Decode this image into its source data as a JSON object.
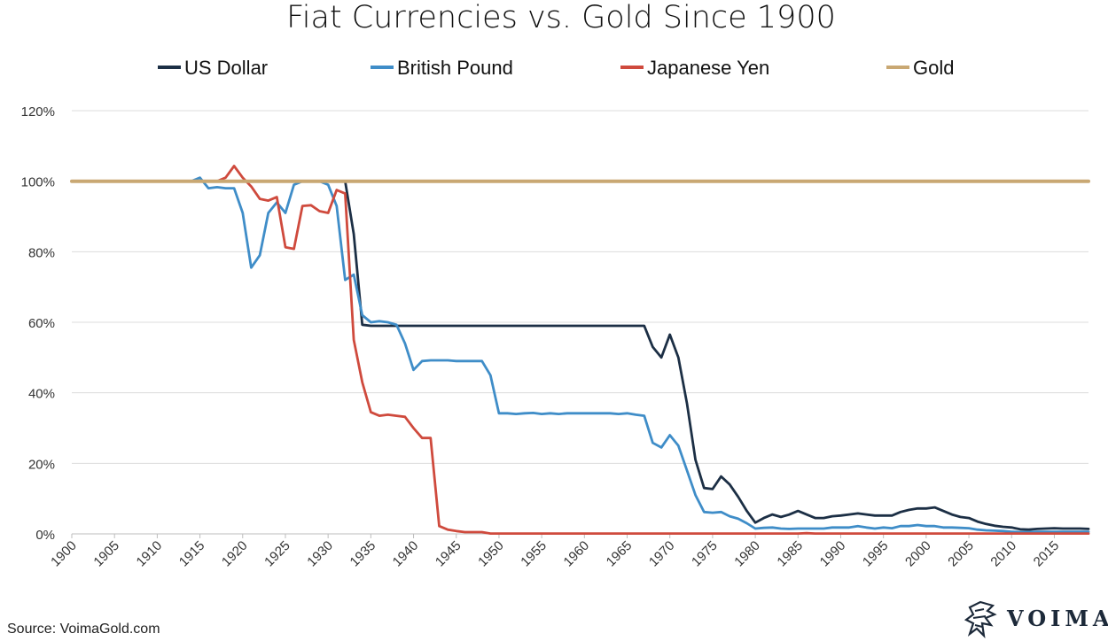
{
  "chart_data": {
    "type": "line",
    "title": "Fiat Currencies vs. Gold Since 1900",
    "xlabel": "",
    "ylabel": "",
    "x_range": [
      1900,
      2019
    ],
    "ylim": [
      0,
      120
    ],
    "y_ticks": [
      0,
      20,
      40,
      60,
      80,
      100,
      120
    ],
    "y_tick_labels": [
      "0%",
      "20%",
      "40%",
      "60%",
      "80%",
      "100%",
      "120%"
    ],
    "x_ticks": [
      1900,
      1905,
      1910,
      1915,
      1920,
      1925,
      1930,
      1935,
      1940,
      1945,
      1950,
      1955,
      1960,
      1965,
      1970,
      1975,
      1980,
      1985,
      1990,
      1995,
      2000,
      2005,
      2010,
      2015
    ],
    "x_tick_labels": [
      "1900",
      "1905",
      "1910",
      "1915",
      "1920",
      "1925",
      "1930",
      "1935",
      "1940",
      "1945",
      "1950",
      "1955",
      "1960",
      "1965",
      "1970",
      "1975",
      "1980",
      "1985",
      "1990",
      "1995",
      "2000",
      "2005",
      "2010",
      "2015"
    ],
    "grid": "horizontal",
    "legend_position": "top",
    "series": [
      {
        "name": "US Dollar",
        "color": "#1c2f45",
        "points": [
          [
            1900,
            100
          ],
          [
            1932,
            100
          ],
          [
            1933,
            85
          ],
          [
            1934,
            59.3
          ],
          [
            1935,
            59
          ],
          [
            1967,
            59
          ],
          [
            1968,
            53
          ],
          [
            1969,
            50
          ],
          [
            1970,
            56.5
          ],
          [
            1971,
            50
          ],
          [
            1972,
            37
          ],
          [
            1973,
            21
          ],
          [
            1974,
            13
          ],
          [
            1975,
            12.7
          ],
          [
            1976,
            16.3
          ],
          [
            1977,
            14
          ],
          [
            1978,
            10.5
          ],
          [
            1979,
            6.5
          ],
          [
            1980,
            3.2
          ],
          [
            1981,
            4.5
          ],
          [
            1982,
            5.5
          ],
          [
            1983,
            4.8
          ],
          [
            1984,
            5.5
          ],
          [
            1985,
            6.5
          ],
          [
            1986,
            5.5
          ],
          [
            1987,
            4.5
          ],
          [
            1988,
            4.5
          ],
          [
            1989,
            5
          ],
          [
            1990,
            5.2
          ],
          [
            1991,
            5.5
          ],
          [
            1992,
            5.8
          ],
          [
            1993,
            5.5
          ],
          [
            1994,
            5.2
          ],
          [
            1995,
            5.2
          ],
          [
            1996,
            5.2
          ],
          [
            1997,
            6.2
          ],
          [
            1998,
            6.8
          ],
          [
            1999,
            7.2
          ],
          [
            2000,
            7.2
          ],
          [
            2001,
            7.5
          ],
          [
            2002,
            6.5
          ],
          [
            2003,
            5.5
          ],
          [
            2004,
            4.8
          ],
          [
            2005,
            4.5
          ],
          [
            2006,
            3.5
          ],
          [
            2007,
            2.8
          ],
          [
            2008,
            2.3
          ],
          [
            2009,
            2
          ],
          [
            2010,
            1.8
          ],
          [
            2011,
            1.3
          ],
          [
            2012,
            1.2
          ],
          [
            2013,
            1.4
          ],
          [
            2014,
            1.5
          ],
          [
            2015,
            1.6
          ],
          [
            2016,
            1.5
          ],
          [
            2017,
            1.5
          ],
          [
            2018,
            1.5
          ],
          [
            2019,
            1.4
          ]
        ]
      },
      {
        "name": "British Pound",
        "color": "#3f8dc8",
        "points": [
          [
            1900,
            100
          ],
          [
            1914,
            100
          ],
          [
            1915,
            101
          ],
          [
            1916,
            98
          ],
          [
            1917,
            98.3
          ],
          [
            1918,
            98
          ],
          [
            1919,
            98
          ],
          [
            1920,
            91
          ],
          [
            1921,
            75.5
          ],
          [
            1922,
            79
          ],
          [
            1923,
            91
          ],
          [
            1924,
            94
          ],
          [
            1925,
            91
          ],
          [
            1926,
            99
          ],
          [
            1927,
            100
          ],
          [
            1928,
            100
          ],
          [
            1929,
            100
          ],
          [
            1930,
            99
          ],
          [
            1931,
            93
          ],
          [
            1932,
            72
          ],
          [
            1933,
            73.5
          ],
          [
            1934,
            62
          ],
          [
            1935,
            60
          ],
          [
            1936,
            60.3
          ],
          [
            1937,
            60
          ],
          [
            1938,
            59.3
          ],
          [
            1939,
            54
          ],
          [
            1940,
            46.5
          ],
          [
            1941,
            49
          ],
          [
            1942,
            49.2
          ],
          [
            1943,
            49.2
          ],
          [
            1944,
            49.2
          ],
          [
            1945,
            49
          ],
          [
            1946,
            49
          ],
          [
            1947,
            49
          ],
          [
            1948,
            49
          ],
          [
            1949,
            45
          ],
          [
            1950,
            34.2
          ],
          [
            1951,
            34.2
          ],
          [
            1952,
            34
          ],
          [
            1953,
            34.2
          ],
          [
            1954,
            34.3
          ],
          [
            1955,
            34
          ],
          [
            1956,
            34.2
          ],
          [
            1957,
            34
          ],
          [
            1958,
            34.2
          ],
          [
            1959,
            34.2
          ],
          [
            1960,
            34.2
          ],
          [
            1961,
            34.2
          ],
          [
            1962,
            34.2
          ],
          [
            1963,
            34.2
          ],
          [
            1964,
            34
          ],
          [
            1965,
            34.2
          ],
          [
            1966,
            33.8
          ],
          [
            1967,
            33.5
          ],
          [
            1968,
            25.8
          ],
          [
            1969,
            24.5
          ],
          [
            1970,
            28
          ],
          [
            1971,
            25
          ],
          [
            1972,
            18
          ],
          [
            1973,
            11
          ],
          [
            1974,
            6.2
          ],
          [
            1975,
            6
          ],
          [
            1976,
            6.2
          ],
          [
            1977,
            5
          ],
          [
            1978,
            4.3
          ],
          [
            1979,
            3
          ],
          [
            1980,
            1.5
          ],
          [
            1981,
            1.7
          ],
          [
            1982,
            1.8
          ],
          [
            1983,
            1.5
          ],
          [
            1984,
            1.4
          ],
          [
            1985,
            1.5
          ],
          [
            1986,
            1.5
          ],
          [
            1987,
            1.5
          ],
          [
            1988,
            1.5
          ],
          [
            1989,
            1.8
          ],
          [
            1990,
            1.8
          ],
          [
            1991,
            1.8
          ],
          [
            1992,
            2.2
          ],
          [
            1993,
            1.8
          ],
          [
            1994,
            1.5
          ],
          [
            1995,
            1.8
          ],
          [
            1996,
            1.6
          ],
          [
            1997,
            2.2
          ],
          [
            1998,
            2.2
          ],
          [
            1999,
            2.5
          ],
          [
            2000,
            2.2
          ],
          [
            2001,
            2.2
          ],
          [
            2002,
            1.8
          ],
          [
            2003,
            1.8
          ],
          [
            2004,
            1.7
          ],
          [
            2005,
            1.6
          ],
          [
            2006,
            1.2
          ],
          [
            2007,
            1
          ],
          [
            2008,
            0.9
          ],
          [
            2009,
            0.8
          ],
          [
            2010,
            0.6
          ],
          [
            2011,
            0.5
          ],
          [
            2012,
            0.5
          ],
          [
            2013,
            0.6
          ],
          [
            2014,
            0.6
          ],
          [
            2015,
            0.6
          ],
          [
            2016,
            0.6
          ],
          [
            2017,
            0.6
          ],
          [
            2018,
            0.6
          ],
          [
            2019,
            0.6
          ]
        ]
      },
      {
        "name": "Japanese Yen",
        "color": "#cf4a3d",
        "points": [
          [
            1900,
            100
          ],
          [
            1916,
            100
          ],
          [
            1917,
            100
          ],
          [
            1918,
            101
          ],
          [
            1919,
            104.3
          ],
          [
            1920,
            101
          ],
          [
            1921,
            98.5
          ],
          [
            1922,
            95
          ],
          [
            1923,
            94.5
          ],
          [
            1924,
            95.5
          ],
          [
            1925,
            81.3
          ],
          [
            1926,
            80.8
          ],
          [
            1927,
            93
          ],
          [
            1928,
            93.2
          ],
          [
            1929,
            91.5
          ],
          [
            1930,
            91
          ],
          [
            1931,
            97.5
          ],
          [
            1932,
            96.5
          ],
          [
            1933,
            55
          ],
          [
            1934,
            43
          ],
          [
            1935,
            34.5
          ],
          [
            1936,
            33.5
          ],
          [
            1937,
            33.8
          ],
          [
            1938,
            33.5
          ],
          [
            1939,
            33.2
          ],
          [
            1940,
            30
          ],
          [
            1941,
            27.2
          ],
          [
            1942,
            27.2
          ],
          [
            1943,
            2.2
          ],
          [
            1944,
            1.2
          ],
          [
            1945,
            0.8
          ],
          [
            1946,
            0.5
          ],
          [
            1947,
            0.5
          ],
          [
            1948,
            0.5
          ],
          [
            1949,
            0.1
          ],
          [
            1950,
            0.1
          ],
          [
            1985,
            0.1
          ],
          [
            1986,
            0.2
          ],
          [
            1987,
            0.1
          ],
          [
            2019,
            0.1
          ]
        ]
      },
      {
        "name": "Gold",
        "color": "#c9a873",
        "points": [
          [
            1900,
            100
          ],
          [
            2019,
            100
          ]
        ]
      }
    ]
  },
  "footer": {
    "source": "Source: VoimaGold.com",
    "brand": "VOIMA"
  }
}
